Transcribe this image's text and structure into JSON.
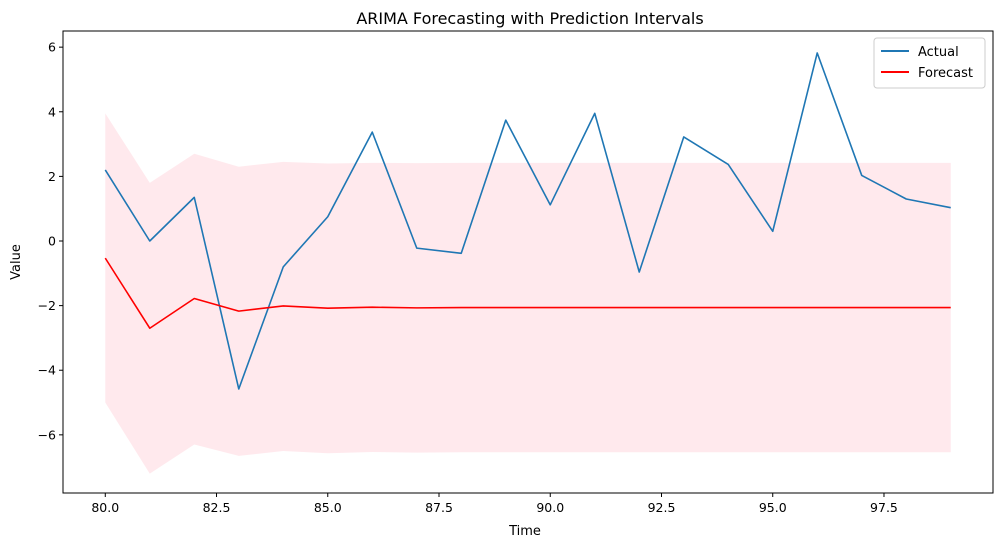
{
  "chart_data": {
    "type": "line",
    "title": "ARIMA Forecasting with Prediction Intervals",
    "xlabel": "Time",
    "ylabel": "Value",
    "xlim": [
      79.05,
      99.95
    ],
    "ylim": [
      -7.8,
      6.5
    ],
    "x_ticks": [
      80.0,
      82.5,
      85.0,
      87.5,
      90.0,
      92.5,
      95.0,
      97.5
    ],
    "x_tick_labels": [
      "80.0",
      "82.5",
      "85.0",
      "87.5",
      "90.0",
      "92.5",
      "95.0",
      "97.5"
    ],
    "y_ticks": [
      -6,
      -4,
      -2,
      0,
      2,
      4,
      6
    ],
    "y_tick_labels": [
      "−6",
      "−4",
      "−2",
      "0",
      "2",
      "4",
      "6"
    ],
    "grid": false,
    "legend_position": "top-right",
    "x": [
      80,
      81,
      82,
      83,
      84,
      85,
      86,
      87,
      88,
      89,
      90,
      91,
      92,
      93,
      94,
      95,
      96,
      97,
      98,
      99
    ],
    "series": [
      {
        "name": "Actual",
        "color": "#1f77b4",
        "values": [
          2.2,
          0.0,
          1.35,
          -4.58,
          -0.8,
          0.75,
          3.37,
          -0.22,
          -0.38,
          3.74,
          1.12,
          3.95,
          -0.96,
          3.22,
          2.37,
          0.3,
          5.82,
          2.03,
          1.3,
          1.03
        ]
      },
      {
        "name": "Forecast",
        "color": "#ff0000",
        "values": [
          -0.53,
          -2.7,
          -1.78,
          -2.17,
          -2.01,
          -2.08,
          -2.05,
          -2.07,
          -2.06,
          -2.06,
          -2.06,
          -2.06,
          -2.06,
          -2.06,
          -2.06,
          -2.06,
          -2.06,
          -2.06,
          -2.06,
          -2.06
        ]
      }
    ],
    "interval": {
      "color": "#ffc0cb",
      "opacity": 0.35,
      "lower": [
        -5.0,
        -7.2,
        -6.3,
        -6.65,
        -6.5,
        -6.57,
        -6.53,
        -6.55,
        -6.54,
        -6.54,
        -6.54,
        -6.54,
        -6.54,
        -6.54,
        -6.54,
        -6.54,
        -6.54,
        -6.54,
        -6.54,
        -6.54
      ],
      "upper": [
        3.95,
        1.8,
        2.7,
        2.3,
        2.45,
        2.4,
        2.42,
        2.41,
        2.42,
        2.42,
        2.42,
        2.42,
        2.42,
        2.42,
        2.42,
        2.42,
        2.42,
        2.42,
        2.42,
        2.42
      ]
    }
  }
}
